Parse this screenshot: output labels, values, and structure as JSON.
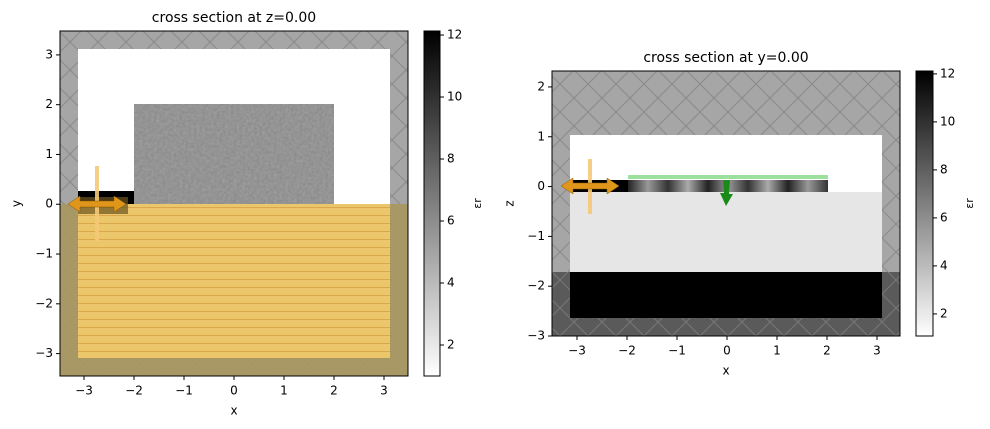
{
  "chart_data": [
    {
      "type": "heatmap",
      "title": "cross section at z=0.00",
      "xlabel": "x",
      "ylabel": "y",
      "xlim": [
        -3.48,
        3.48
      ],
      "ylim": [
        -3.45,
        3.48
      ],
      "xticks": [
        {
          "value": -3,
          "label": "−3"
        },
        {
          "value": -2,
          "label": "−2"
        },
        {
          "value": -1,
          "label": "−1"
        },
        0,
        1,
        2,
        3
      ],
      "yticks": [
        {
          "value": -3,
          "label": "−3"
        },
        {
          "value": -2,
          "label": "−2"
        },
        {
          "value": -1,
          "label": "−1"
        },
        0,
        1,
        2,
        3
      ],
      "colorbar": {
        "label": "εr",
        "lim": [
          1,
          12.13
        ],
        "ticks": [
          2,
          4,
          6,
          8,
          10,
          12
        ]
      }
    },
    {
      "type": "heatmap",
      "title": "cross section at y=0.00",
      "xlabel": "x",
      "ylabel": "z",
      "xlim": [
        -3.5,
        3.46
      ],
      "ylim": [
        -3,
        2.32
      ],
      "xticks": [
        {
          "value": -3,
          "label": "−3"
        },
        {
          "value": -2,
          "label": "−2"
        },
        {
          "value": -1,
          "label": "−1"
        },
        0,
        1,
        2,
        3
      ],
      "yticks": [
        {
          "value": -3,
          "label": "−3"
        },
        {
          "value": -2,
          "label": "−2"
        },
        {
          "value": -1,
          "label": "−1"
        },
        0,
        1,
        2
      ],
      "colorbar": {
        "label": "εr",
        "lim": [
          1.08,
          12.12
        ],
        "ticks": [
          2,
          4,
          6,
          8,
          10,
          12
        ]
      }
    }
  ]
}
